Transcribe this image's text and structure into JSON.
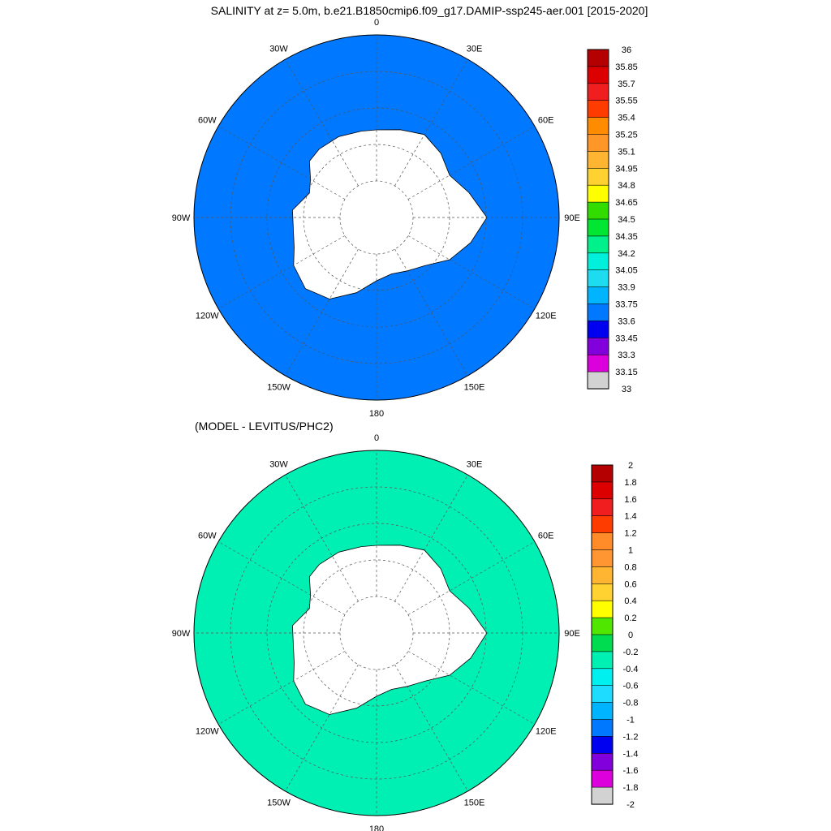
{
  "title": "SALINITY at z=   5.0m, b.e21.B1850cmip6.f09_g17.DAMIP-ssp245-aer.001 [2015-2020]",
  "subtitle": "(MODEL - LEVITUS/PHC2)",
  "chart_data": [
    {
      "type": "heatmap",
      "projection": "south-polar-stereographic",
      "variable": "salinity",
      "longitude_labels": [
        "0",
        "30E",
        "60E",
        "90E",
        "120E",
        "150E",
        "180",
        "150W",
        "120W",
        "90W",
        "60W",
        "30W"
      ],
      "land_color": "#ffffff",
      "dominant_value": 33.75,
      "colorbar": {
        "labels": [
          "36",
          "35.85",
          "35.7",
          "35.55",
          "35.4",
          "35.25",
          "35.1",
          "34.95",
          "34.8",
          "34.65",
          "34.5",
          "34.35",
          "34.2",
          "34.05",
          "33.9",
          "33.75",
          "33.6",
          "33.45",
          "33.3",
          "33.15",
          "33"
        ],
        "colors": [
          "#b40000",
          "#dc0000",
          "#f01e1e",
          "#ff3c00",
          "#ff8c00",
          "#ff9628",
          "#ffb432",
          "#ffd232",
          "#ffff00",
          "#32dc00",
          "#00e632",
          "#00f08c",
          "#00f0dc",
          "#1edcf0",
          "#00b4ff",
          "#0078ff",
          "#0000f0",
          "#8200dc",
          "#dc00dc",
          "#d2d2d2",
          "#6e6e6e"
        ]
      }
    },
    {
      "type": "heatmap",
      "projection": "south-polar-stereographic",
      "variable": "salinity difference",
      "longitude_labels": [
        "0",
        "30E",
        "60E",
        "90E",
        "120E",
        "150E",
        "180",
        "150W",
        "120W",
        "90W",
        "60W",
        "30W"
      ],
      "land_color": "#ffffff",
      "dominant_value": -0.3,
      "colorbar": {
        "labels": [
          "2",
          "1.8",
          "1.6",
          "1.4",
          "1.2",
          "1",
          "0.8",
          "0.6",
          "0.4",
          "0.2",
          "0",
          "-0.2",
          "-0.4",
          "-0.6",
          "-0.8",
          "-1",
          "-1.2",
          "-1.4",
          "-1.6",
          "-1.8",
          "-2"
        ],
        "colors": [
          "#b40000",
          "#dc0000",
          "#f01e1e",
          "#ff3c00",
          "#ff8c28",
          "#ff9632",
          "#ffb432",
          "#ffd232",
          "#ffff00",
          "#50e600",
          "#00dc50",
          "#00f0b4",
          "#00f0f0",
          "#1edcff",
          "#00b4ff",
          "#0078ff",
          "#0000f0",
          "#8200dc",
          "#dc00dc",
          "#d2d2d2",
          "#6e6e6e"
        ]
      }
    }
  ]
}
